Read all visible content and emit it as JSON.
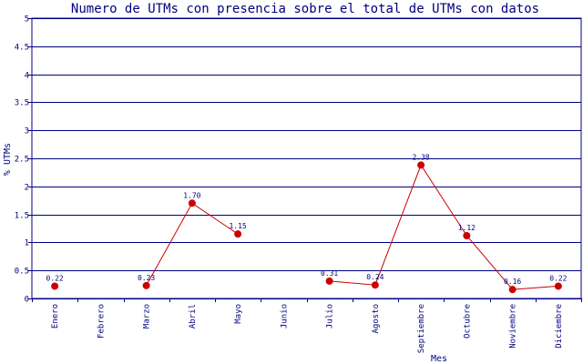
{
  "chart_data": {
    "type": "line",
    "title": "Numero de UTMs con presencia sobre el total de UTMs con datos",
    "xlabel": "Mes",
    "ylabel": "% UTMs",
    "ylim": [
      0,
      5
    ],
    "yticks": [
      "0",
      "0.5",
      "1",
      "1.5",
      "2",
      "2.5",
      "3",
      "3.5",
      "4",
      "4.5",
      "5"
    ],
    "categories": [
      "Enero",
      "Febrero",
      "Marzo",
      "Abril",
      "Mayo",
      "Junio",
      "Julio",
      "Agosto",
      "Septiembre",
      "Octubre",
      "Noviembre",
      "Diciembre"
    ],
    "values": [
      0.22,
      null,
      0.23,
      1.7,
      1.15,
      null,
      0.31,
      0.24,
      2.38,
      1.12,
      0.16,
      0.22
    ],
    "value_labels": [
      "0.22",
      "",
      "0.23",
      "1.70",
      "1.15",
      "",
      "0.31",
      "0.24",
      "2.38",
      "1.12",
      "0.16",
      "0.22"
    ],
    "grid": true,
    "colors": {
      "line": "#cc0000",
      "marker": "#cc0000",
      "grid": "#000080",
      "text": "#000080"
    }
  }
}
